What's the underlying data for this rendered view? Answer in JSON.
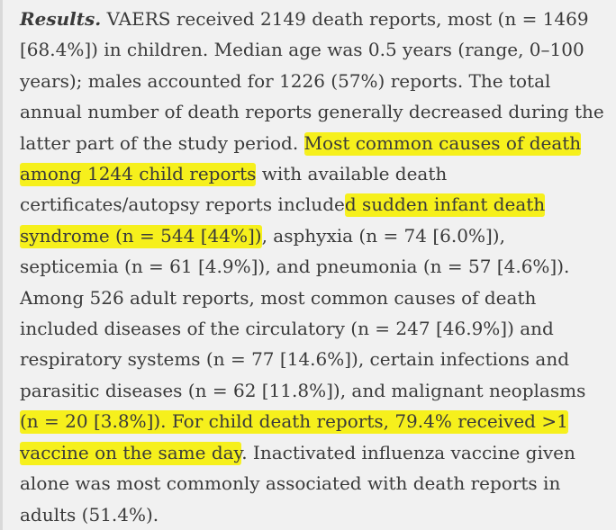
{
  "results_paragraph": {
    "lead_label": "Results.",
    "segment_1": " VAERS received 2149 death reports, most (n = 1469 [68.4%]) in children. Median age was 0.5 years (range, 0–100 years); males accounted for 1226 (57%) reports. The total annual number of death reports generally decreased during the latter part of the study period. ",
    "highlight_1": "Most common causes of death among 1244 child reports",
    "segment_2": " with available death certificates/autopsy reports include",
    "highlight_2": "d sudden infant death syndrome (n = 544 [44%])",
    "segment_3": ", asphyxia (n = 74 [6.0%]), septicemia (n = 61 [4.9%]), and pneumonia (n = 57 [4.6%]). Among 526 adult reports, most common causes of death included diseases of the circulatory (n = 247 [46.9%]) and respiratory systems (n = 77 [14.6%]), certain infections and parasitic diseases (n = 62 [11.8%]), and malignant neoplasms ",
    "highlight_3": "(n = 20 [3.8%]). For child death reports, 79.4% received >1 vaccine on the same day",
    "segment_4": ". Inactivated influenza vaccine given alone was most commonly associated with death reports in adults (51.4%)."
  },
  "colors": {
    "background": "#f1f1f1",
    "text": "#3a3a3a",
    "highlight": "#f6f01c",
    "accent_bar": "#d9d9d9"
  }
}
